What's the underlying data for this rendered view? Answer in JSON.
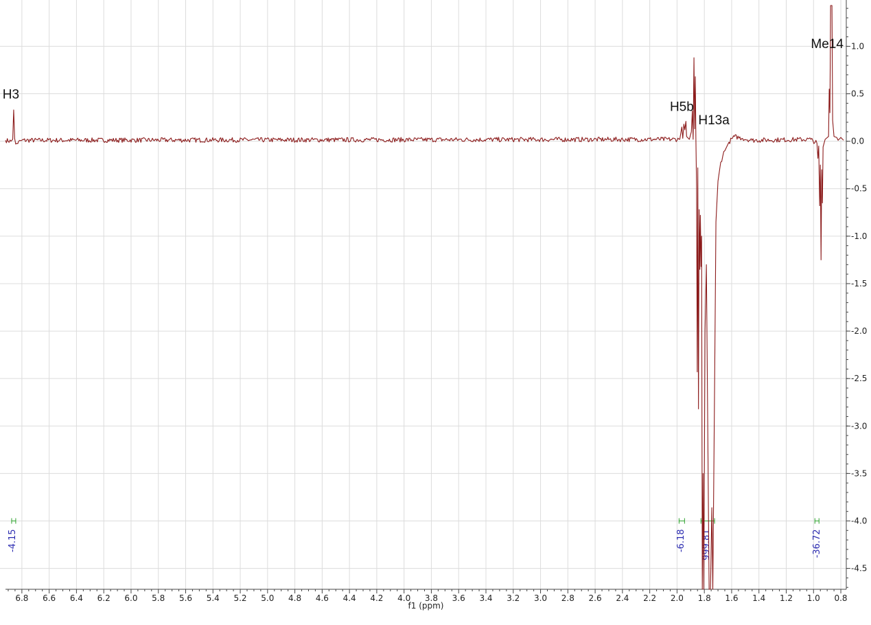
{
  "chart_data": {
    "type": "line",
    "title": "",
    "xlabel": "f1 (ppm)",
    "ylabel": "",
    "xlim": [
      6.92,
      0.76
    ],
    "ylim": [
      -4.72,
      1.43
    ],
    "x_reversed": true,
    "grid": true,
    "x_ticks": [
      "6.8",
      "6.6",
      "6.4",
      "6.2",
      "6.0",
      "5.8",
      "5.6",
      "5.4",
      "5.2",
      "5.0",
      "4.8",
      "4.6",
      "4.4",
      "4.2",
      "4.0",
      "3.8",
      "3.6",
      "3.4",
      "3.2",
      "3.0",
      "2.8",
      "2.6",
      "2.4",
      "2.2",
      "2.0",
      "1.8",
      "1.6",
      "1.4",
      "1.2",
      "1.0",
      "0.8"
    ],
    "y_ticks": [
      "1.0",
      "0.5",
      "0.0",
      "-0.5",
      "-1.0",
      "-1.5",
      "-2.0",
      "-2.5",
      "-3.0",
      "-3.5",
      "-4.0",
      "-4.5"
    ],
    "line_color": "#8b1a1a",
    "series": [
      {
        "values": [
          [
            6.92,
            0.01
          ],
          [
            6.88,
            0.0
          ],
          [
            6.867,
            0.02
          ],
          [
            6.86,
            0.33
          ],
          [
            6.853,
            0.03
          ],
          [
            6.845,
            -0.03
          ],
          [
            6.8,
            0.01
          ],
          [
            1.98,
            0.02
          ],
          [
            1.965,
            0.15
          ],
          [
            1.958,
            0.03
          ],
          [
            1.95,
            0.18
          ],
          [
            1.943,
            0.12
          ],
          [
            1.935,
            0.21
          ],
          [
            1.93,
            0.05
          ],
          [
            1.91,
            0.02
          ],
          [
            1.895,
            0.1
          ],
          [
            1.888,
            0.32
          ],
          [
            1.882,
            0.02
          ],
          [
            1.876,
            0.88
          ],
          [
            1.871,
            0.13
          ],
          [
            1.866,
            0.68
          ],
          [
            1.862,
            0.04
          ],
          [
            1.857,
            -0.49
          ],
          [
            1.852,
            -2.43
          ],
          [
            1.848,
            -0.28
          ],
          [
            1.843,
            -2.82
          ],
          [
            1.838,
            -0.72
          ],
          [
            1.833,
            -1.35
          ],
          [
            1.829,
            -0.78
          ],
          [
            1.824,
            -1.32
          ],
          [
            1.82,
            -1.0
          ],
          [
            1.815,
            -4.72
          ],
          [
            1.809,
            -3.5
          ],
          [
            1.804,
            -4.72
          ],
          [
            1.795,
            -2.0
          ],
          [
            1.785,
            -1.3
          ],
          [
            1.765,
            -4.72
          ],
          [
            1.755,
            -4.72
          ],
          [
            1.745,
            -3.86
          ],
          [
            1.738,
            -4.72
          ],
          [
            1.725,
            -2.6
          ],
          [
            1.715,
            -0.85
          ],
          [
            1.7,
            -0.42
          ],
          [
            1.68,
            -0.22
          ],
          [
            1.65,
            -0.1
          ],
          [
            1.62,
            -0.01
          ],
          [
            1.58,
            0.05
          ],
          [
            1.52,
            0.03
          ],
          [
            1.45,
            0.01
          ],
          [
            1.02,
            0.02
          ],
          [
            0.975,
            -0.02
          ],
          [
            0.968,
            -0.18
          ],
          [
            0.962,
            -0.05
          ],
          [
            0.955,
            -0.68
          ],
          [
            0.95,
            -0.25
          ],
          [
            0.945,
            -1.25
          ],
          [
            0.94,
            -0.3
          ],
          [
            0.935,
            -0.65
          ],
          [
            0.93,
            -0.06
          ],
          [
            0.915,
            0.02
          ],
          [
            0.89,
            0.05
          ],
          [
            0.885,
            0.55
          ],
          [
            0.88,
            0.3
          ],
          [
            0.875,
            1.43
          ],
          [
            0.87,
            1.43
          ],
          [
            0.865,
            1.43
          ],
          [
            0.86,
            0.22
          ],
          [
            0.85,
            0.05
          ],
          [
            0.83,
            0.04
          ],
          [
            0.82,
            0.01
          ],
          [
            0.8,
            0.04
          ],
          [
            0.78,
            0.01
          ]
        ]
      }
    ],
    "annotations": [
      {
        "text": "H3",
        "x": 6.88,
        "y": 0.45
      },
      {
        "text": "H5b",
        "x": 1.965,
        "y": 0.32
      },
      {
        "text": "H13a",
        "x": 1.73,
        "y": 0.18
      },
      {
        "text": "Me14",
        "x": 0.9,
        "y": 0.98
      }
    ],
    "integrals": [
      {
        "label": "-4.15",
        "from": 6.875,
        "to": 6.845,
        "label_x": 6.875
      },
      {
        "label": "-6.18",
        "from": 1.985,
        "to": 1.945,
        "label_x": 1.978
      },
      {
        "label": "999.81",
        "from": 1.825,
        "to": 1.725,
        "label_x": 1.79
      },
      {
        "label": "-36.72",
        "from": 0.99,
        "to": 0.96,
        "label_x": 0.98
      }
    ],
    "integral_color": "#2aa02a",
    "integral_label_color": "#2b2bb0"
  }
}
